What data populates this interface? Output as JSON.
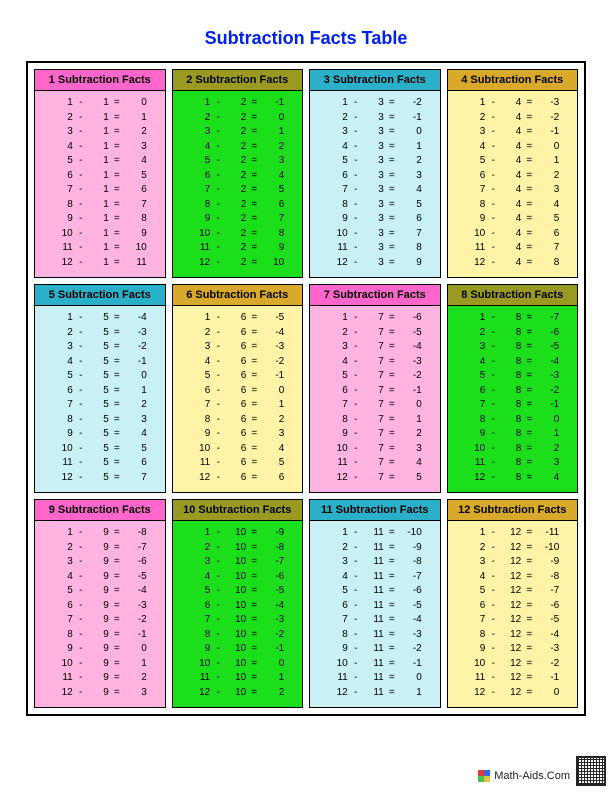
{
  "title": "Subtraction Facts Table",
  "title_color": "#0020ee",
  "footer_text": "Math-Aids.Com",
  "footer_icon_colors": [
    "#e23b3b",
    "#3b64e2",
    "#4cc24c",
    "#e2c43b"
  ],
  "header_colors": {
    "pink": "#ff66cc",
    "olive": "#9a9a22",
    "teal": "#2ab0c9",
    "gold": "#d8a92a"
  },
  "body_colors": {
    "pink": "#ffb3e0",
    "green": "#1cdf1c",
    "cyan": "#c8f0f5",
    "yellow": "#fff3a8"
  },
  "columns_per_row": 4,
  "blocks": [
    {
      "n": 1,
      "label": "1 Subtraction Facts",
      "header_key": "pink",
      "body_key": "pink"
    },
    {
      "n": 2,
      "label": "2 Subtraction Facts",
      "header_key": "olive",
      "body_key": "green"
    },
    {
      "n": 3,
      "label": "3 Subtraction Facts",
      "header_key": "teal",
      "body_key": "cyan"
    },
    {
      "n": 4,
      "label": "4 Subtraction Facts",
      "header_key": "gold",
      "body_key": "yellow"
    },
    {
      "n": 5,
      "label": "5 Subtraction Facts",
      "header_key": "teal",
      "body_key": "cyan"
    },
    {
      "n": 6,
      "label": "6 Subtraction Facts",
      "header_key": "gold",
      "body_key": "yellow"
    },
    {
      "n": 7,
      "label": "7 Subtraction Facts",
      "header_key": "pink",
      "body_key": "pink"
    },
    {
      "n": 8,
      "label": "8 Subtraction Facts",
      "header_key": "olive",
      "body_key": "green"
    },
    {
      "n": 9,
      "label": "9 Subtraction Facts",
      "header_key": "pink",
      "body_key": "pink"
    },
    {
      "n": 10,
      "label": "10 Subtraction Facts",
      "header_key": "olive",
      "body_key": "green"
    },
    {
      "n": 11,
      "label": "11 Subtraction Facts",
      "header_key": "teal",
      "body_key": "cyan"
    },
    {
      "n": 12,
      "label": "12 Subtraction Facts",
      "header_key": "gold",
      "body_key": "yellow"
    }
  ],
  "minuends": [
    1,
    2,
    3,
    4,
    5,
    6,
    7,
    8,
    9,
    10,
    11,
    12
  ],
  "minus_symbol": "-",
  "equals_symbol": "="
}
